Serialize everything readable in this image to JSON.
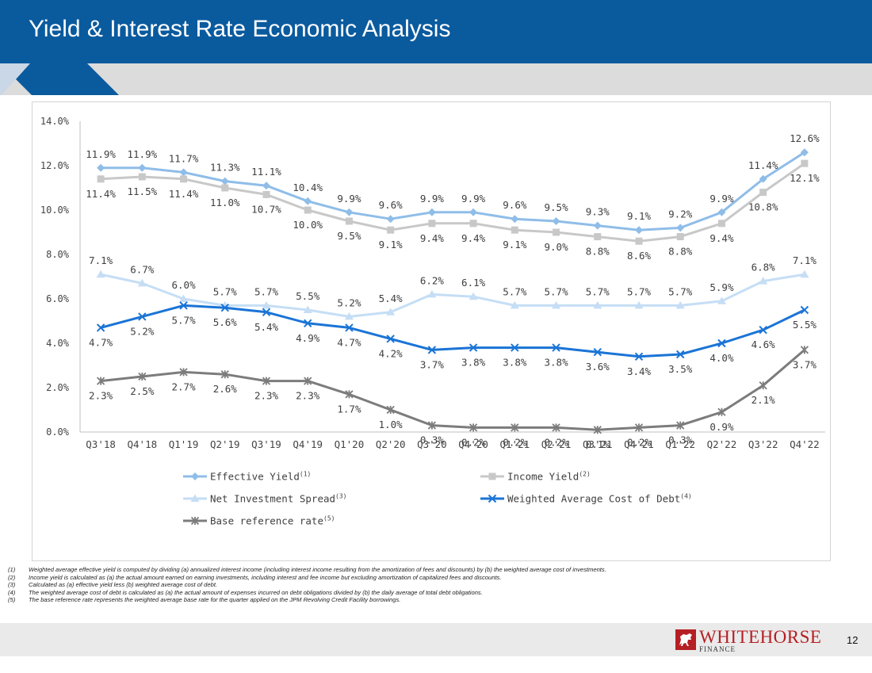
{
  "slide": {
    "title": "Yield & Interest Rate Economic Analysis",
    "page_number": "12"
  },
  "brand": {
    "name": "WHITEHORSE",
    "sub": "FINANCE",
    "header_color": "#0a5a9e",
    "accent": "#b51f24"
  },
  "chart_data": {
    "type": "line",
    "categories": [
      "Q3'18",
      "Q4'18",
      "Q1'19",
      "Q2'19",
      "Q3'19",
      "Q4'19",
      "Q1'20",
      "Q2'20",
      "Q3'20",
      "Q4'20",
      "Q1'21",
      "Q2'21",
      "Q3'21",
      "Q4'21",
      "Q1'22",
      "Q2'22",
      "Q3'22",
      "Q4'22"
    ],
    "ylim": [
      0,
      14
    ],
    "yticks": [
      0,
      2,
      4,
      6,
      8,
      10,
      12,
      14
    ],
    "ytick_labels": [
      "0.0%",
      "2.0%",
      "4.0%",
      "6.0%",
      "8.0%",
      "10.0%",
      "12.0%",
      "14.0%"
    ],
    "grid": false,
    "legend_position": "bottom",
    "series": [
      {
        "name": "Effective Yield",
        "sup": "(1)",
        "color": "#8fbde8",
        "marker": "diamond",
        "label_pos": "above",
        "values": [
          11.9,
          11.9,
          11.7,
          11.3,
          11.1,
          10.4,
          9.9,
          9.6,
          9.9,
          9.9,
          9.6,
          9.5,
          9.3,
          9.1,
          9.2,
          9.9,
          11.4,
          12.6
        ],
        "labels": [
          "11.9%",
          "11.9%",
          "11.7%",
          "11.3%",
          "11.1%",
          "10.4%",
          "9.9%",
          "9.6%",
          "9.9%",
          "9.9%",
          "9.6%",
          "9.5%",
          "9.3%",
          "9.1%",
          "9.2%",
          "9.9%",
          "11.4%",
          "12.6%"
        ]
      },
      {
        "name": "Income Yield",
        "sup": "(2)",
        "color": "#c8c8c8",
        "marker": "square",
        "label_pos": "below",
        "values": [
          11.4,
          11.5,
          11.4,
          11.0,
          10.7,
          10.0,
          9.5,
          9.1,
          9.4,
          9.4,
          9.1,
          9.0,
          8.8,
          8.6,
          8.8,
          9.4,
          10.8,
          12.1
        ],
        "labels": [
          "11.4%",
          "11.5%",
          "11.4%",
          "11.0%",
          "10.7%",
          "10.0%",
          "9.5%",
          "9.1%",
          "9.4%",
          "9.4%",
          "9.1%",
          "9.0%",
          "8.8%",
          "8.6%",
          "8.8%",
          "9.4%",
          "10.8%",
          "12.1%"
        ]
      },
      {
        "name": "Net Investment Spread",
        "sup": "(3)",
        "color": "#c5def5",
        "marker": "triangle",
        "label_pos": "above",
        "values": [
          7.1,
          6.7,
          6.0,
          5.7,
          5.7,
          5.5,
          5.2,
          5.4,
          6.2,
          6.1,
          5.7,
          5.7,
          5.7,
          5.7,
          5.7,
          5.9,
          6.8,
          7.1
        ],
        "labels": [
          "7.1%",
          "6.7%",
          "6.0%",
          "5.7%",
          "5.7%",
          "5.5%",
          "5.2%",
          "5.4%",
          "6.2%",
          "6.1%",
          "5.7%",
          "5.7%",
          "5.7%",
          "5.7%",
          "5.7%",
          "5.9%",
          "6.8%",
          "7.1%"
        ]
      },
      {
        "name": "Weighted Average Cost of Debt",
        "sup": "(4)",
        "color": "#1a74d6",
        "marker": "x",
        "label_pos": "below",
        "values": [
          4.7,
          5.2,
          5.7,
          5.6,
          5.4,
          4.9,
          4.7,
          4.2,
          3.7,
          3.8,
          3.8,
          3.8,
          3.6,
          3.4,
          3.5,
          4.0,
          4.6,
          5.5
        ],
        "labels": [
          "4.7%",
          "5.2%",
          "5.7%",
          "5.6%",
          "5.4%",
          "4.9%",
          "4.7%",
          "4.2%",
          "3.7%",
          "3.8%",
          "3.8%",
          "3.8%",
          "3.6%",
          "3.4%",
          "3.5%",
          "4.0%",
          "4.6%",
          "5.5%"
        ]
      },
      {
        "name": "Base reference rate",
        "sup": "(5)",
        "color": "#7c7c7c",
        "marker": "star",
        "label_pos": "below",
        "values": [
          2.3,
          2.5,
          2.7,
          2.6,
          2.3,
          2.3,
          1.7,
          1.0,
          0.3,
          0.2,
          0.2,
          0.2,
          0.1,
          0.2,
          0.3,
          0.9,
          2.1,
          3.7
        ],
        "labels": [
          "2.3%",
          "2.5%",
          "2.7%",
          "2.6%",
          "2.3%",
          "2.3%",
          "1.7%",
          "1.0%",
          "0.3%",
          "0.2%",
          "0.2%",
          "0.2%",
          "0.1%",
          "0.2%",
          "0.3%",
          "0.9%",
          "2.1%",
          "3.7%"
        ]
      }
    ]
  },
  "footnotes": [
    {
      "num": "(1)",
      "text": "Weighted average effective yield is computed by dividing (a) annualized interest income (including interest income resulting from the amortization of fees and discounts) by (b) the weighted average cost of investments."
    },
    {
      "num": "(2)",
      "text": "Income yield is calculated as (a) the actual amount earned on earning investments, including interest and fee income but excluding amortization of capitalized fees and discounts."
    },
    {
      "num": "(3)",
      "text": "Calculated as (a) effective yield less (b) weighted average cost of debt."
    },
    {
      "num": "(4)",
      "text": "The weighted average cost of debt is calculated as (a) the actual amount of expenses incurred on debt obligations divided by (b) the daily average of total debt obligations."
    },
    {
      "num": "(5)",
      "text": "The base reference rate represents the weighted average base rate for the quarter applied on the JPM Revolving Credit Facility borrowings."
    }
  ]
}
